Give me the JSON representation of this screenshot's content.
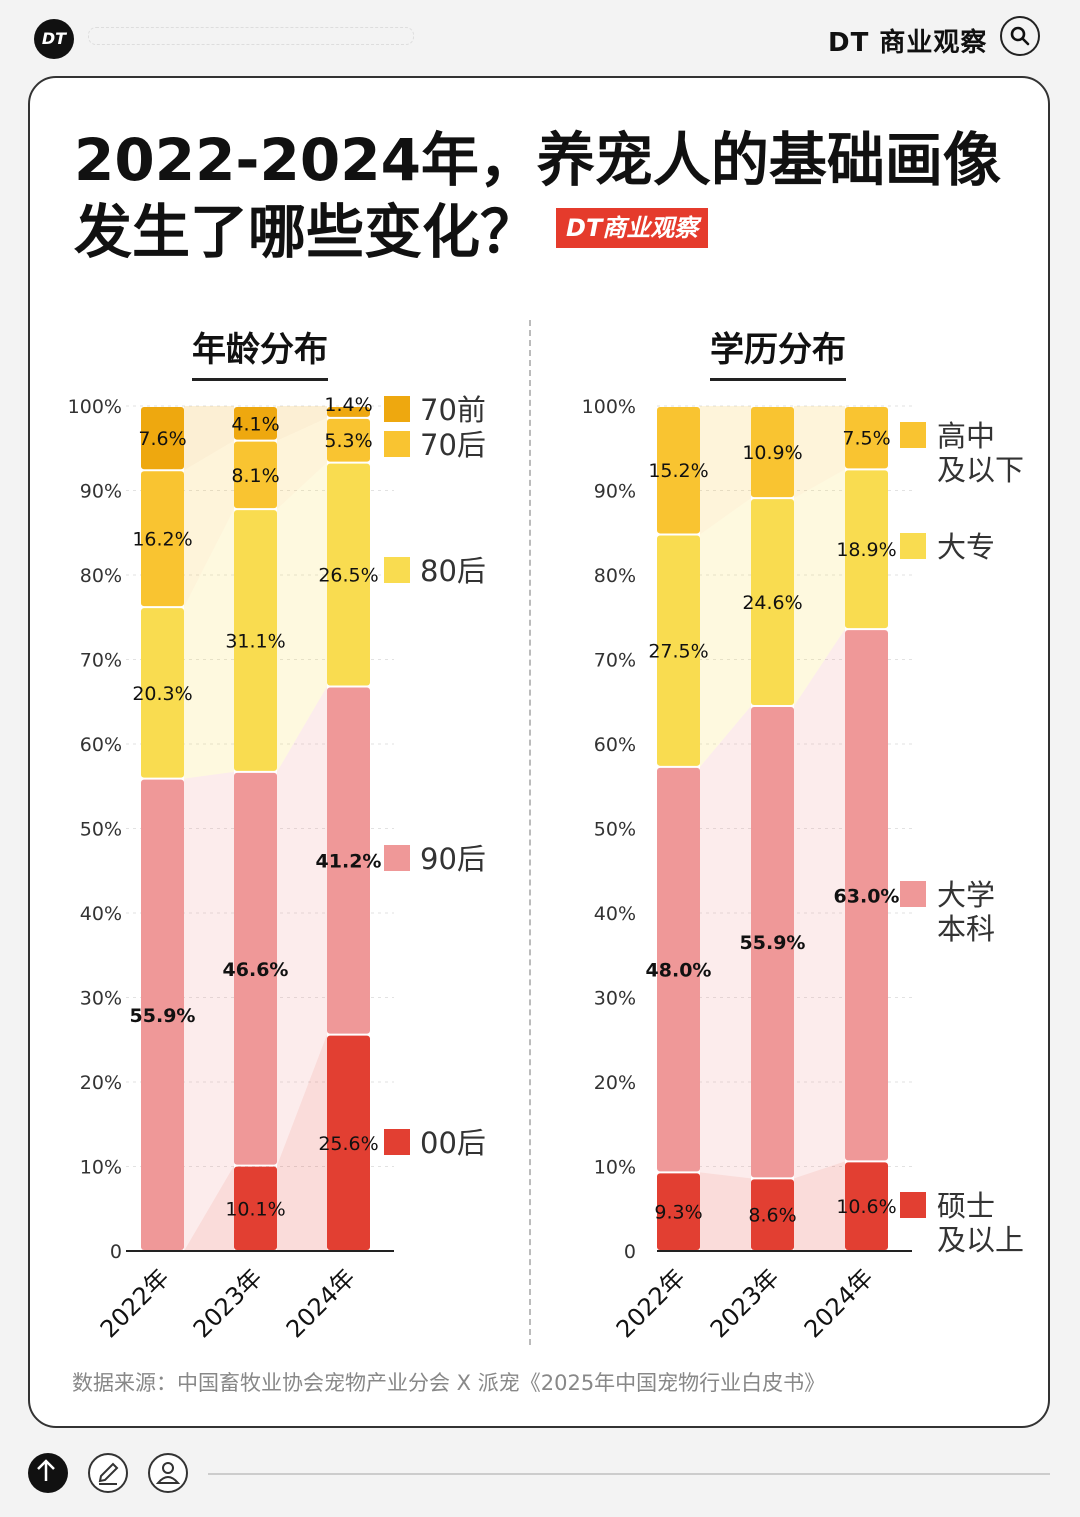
{
  "header": {
    "logo": "DT",
    "brand": "DT 商业观察"
  },
  "title": {
    "line1": "2022-2024年，养宠人的基础画像",
    "line2": "发生了哪些变化？",
    "tag": "DT商业观察"
  },
  "source": "数据来源：中国畜牧业协会宠物产业分会 X 派宠《2025年中国宠物行业白皮书》",
  "colors": {
    "dark_orange": "#eea80f",
    "orange": "#f9c431",
    "yellow": "#f9dc50",
    "pink": "#ef9898",
    "red": "#e23f32"
  },
  "chart_data": [
    {
      "type": "bar",
      "stacked": true,
      "title": "年龄分布",
      "categories": [
        "2022年",
        "2023年",
        "2024年"
      ],
      "ylim": [
        0,
        100
      ],
      "y_ticks": [
        "0",
        "10%",
        "20%",
        "30%",
        "40%",
        "50%",
        "60%",
        "70%",
        "80%",
        "90%",
        "100%"
      ],
      "series": [
        {
          "name": "00后",
          "color": "#e23f32",
          "values": [
            0,
            10.1,
            25.6
          ],
          "labels": [
            "",
            "10.1%",
            "25.6%"
          ]
        },
        {
          "name": "90后",
          "color": "#ef9898",
          "values": [
            55.9,
            46.6,
            41.2
          ],
          "labels": [
            "55.9%",
            "46.6%",
            "41.2%"
          ]
        },
        {
          "name": "80后",
          "color": "#f9dc50",
          "values": [
            20.3,
            31.1,
            26.5
          ],
          "labels": [
            "20.3%",
            "31.1%",
            "26.5%"
          ]
        },
        {
          "name": "70后",
          "color": "#f9c431",
          "values": [
            16.2,
            8.1,
            5.3
          ],
          "labels": [
            "16.2%",
            "8.1%",
            "5.3%"
          ]
        },
        {
          "name": "70前",
          "color": "#eea80f",
          "values": [
            7.6,
            4.1,
            1.4
          ],
          "labels": [
            "7.6%",
            "4.1%",
            "1.4%"
          ]
        }
      ],
      "legend": [
        "70前",
        "70后",
        "80后",
        "90后",
        "00后"
      ]
    },
    {
      "type": "bar",
      "stacked": true,
      "title": "学历分布",
      "categories": [
        "2022年",
        "2023年",
        "2024年"
      ],
      "ylim": [
        0,
        100
      ],
      "y_ticks": [
        "0",
        "10%",
        "20%",
        "30%",
        "40%",
        "50%",
        "60%",
        "70%",
        "80%",
        "90%",
        "100%"
      ],
      "series": [
        {
          "name": "硕士及以上",
          "color": "#e23f32",
          "values": [
            9.3,
            8.6,
            10.6
          ],
          "labels": [
            "9.3%",
            "8.6%",
            "10.6%"
          ]
        },
        {
          "name": "大学本科",
          "color": "#ef9898",
          "values": [
            48.0,
            55.9,
            63.0
          ],
          "labels": [
            "48.0%",
            "55.9%",
            "63.0%"
          ]
        },
        {
          "name": "大专",
          "color": "#f9dc50",
          "values": [
            27.5,
            24.6,
            18.9
          ],
          "labels": [
            "27.5%",
            "24.6%",
            "18.9%"
          ]
        },
        {
          "name": "高中及以下",
          "color": "#f9c431",
          "values": [
            15.2,
            10.9,
            7.5
          ],
          "labels": [
            "15.2%",
            "10.9%",
            "7.5%"
          ]
        }
      ],
      "legend": [
        "高中\n及以下",
        "大专",
        "大学\n本科",
        "硕士\n及以上"
      ]
    }
  ]
}
